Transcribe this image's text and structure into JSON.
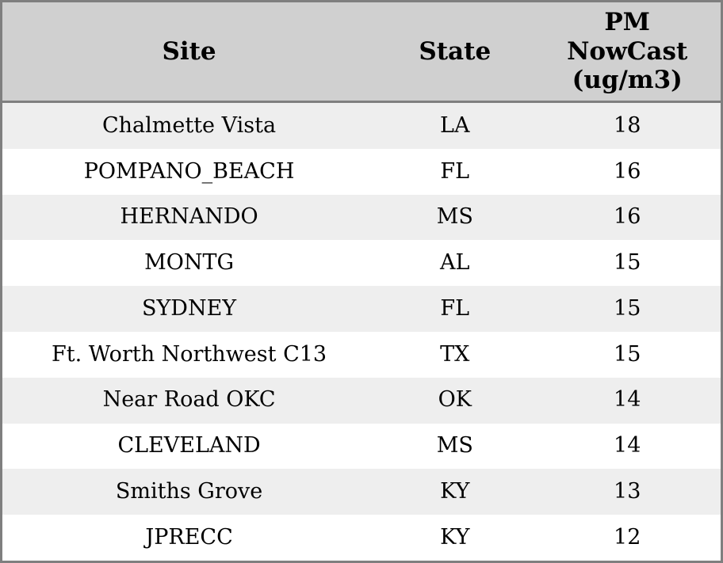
{
  "chart_data": {
    "type": "table",
    "title": "",
    "columns": [
      {
        "key": "site",
        "label": "Site"
      },
      {
        "key": "state",
        "label": "State"
      },
      {
        "key": "value",
        "label": "PM NowCast (ug/m3)"
      }
    ],
    "rows": [
      {
        "site": "Chalmette Vista",
        "state": "LA",
        "value": "18"
      },
      {
        "site": "POMPANO_BEACH",
        "state": "FL",
        "value": "16"
      },
      {
        "site": "HERNANDO",
        "state": "MS",
        "value": "16"
      },
      {
        "site": "MONTG",
        "state": "AL",
        "value": "15"
      },
      {
        "site": "SYDNEY",
        "state": "FL",
        "value": "15"
      },
      {
        "site": "Ft. Worth Northwest C13",
        "state": "TX",
        "value": "15"
      },
      {
        "site": "Near Road OKC",
        "state": "OK",
        "value": "14"
      },
      {
        "site": "CLEVELAND",
        "state": "MS",
        "value": "14"
      },
      {
        "site": "Smiths Grove",
        "state": "KY",
        "value": "13"
      },
      {
        "site": "JPRECC",
        "state": "KY",
        "value": "12"
      }
    ],
    "colors": {
      "header_bg": "#d0d0d0",
      "border": "#7f7f7f",
      "row_alt": "#eeeeee",
      "row": "#ffffff",
      "text": "#000000"
    },
    "layout": {
      "grid": "none",
      "row_striping": true,
      "alignment": "center"
    }
  }
}
